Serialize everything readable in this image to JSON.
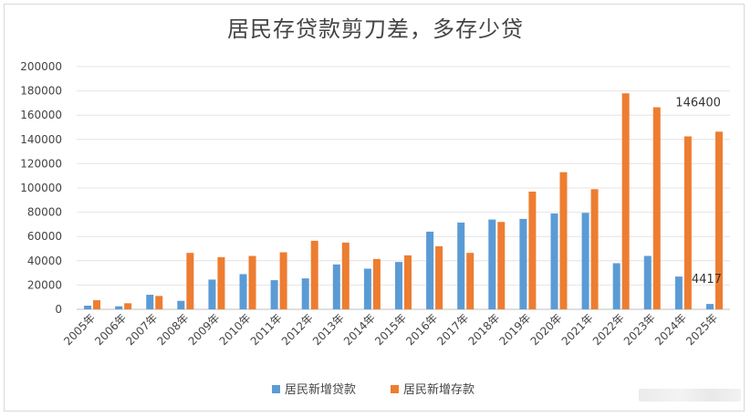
{
  "chart_data": {
    "type": "bar",
    "title": "居民存贷款剪刀差，多存少贷",
    "categories": [
      "2005年",
      "2006年",
      "2007年",
      "2008年",
      "2009年",
      "2010年",
      "2011年",
      "2012年",
      "2013年",
      "2014年",
      "2015年",
      "2016年",
      "2017年",
      "2018年",
      "2019年",
      "2020年",
      "2021年",
      "2022年",
      "2023年",
      "2024年",
      "2025年"
    ],
    "series": [
      {
        "name": "居民新增贷款",
        "color": "#5b9bd5",
        "values": [
          3000,
          2500,
          12000,
          7000,
          24500,
          29000,
          24000,
          25500,
          37000,
          33500,
          39000,
          64000,
          71500,
          74000,
          74500,
          79000,
          79500,
          38000,
          44000,
          27000,
          4417
        ]
      },
      {
        "name": "居民新增存款",
        "color": "#ed7d31",
        "values": [
          7500,
          5000,
          11000,
          46500,
          43000,
          44000,
          47000,
          56500,
          55000,
          41500,
          44500,
          52000,
          46500,
          72000,
          97000,
          113000,
          99000,
          178000,
          166500,
          142500,
          146400
        ]
      }
    ],
    "yticks": [
      0,
      20000,
      40000,
      60000,
      80000,
      100000,
      120000,
      140000,
      160000,
      180000,
      200000
    ],
    "ylim": [
      0,
      200000
    ],
    "grid": true,
    "legend": "bottom",
    "annotations": [
      "146400",
      "4417"
    ]
  }
}
